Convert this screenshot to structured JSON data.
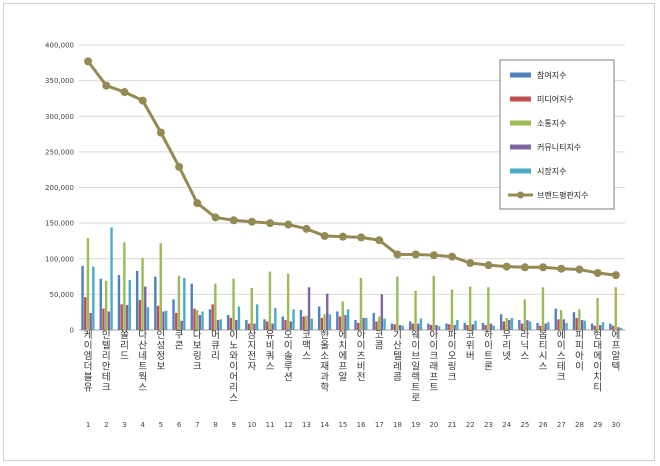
{
  "chart_data": {
    "type": "bar",
    "title": "",
    "xlabel": "",
    "ylabel": "",
    "ylim": [
      0,
      400000
    ],
    "yticks": [
      "0",
      "50,000",
      "100,000",
      "150,000",
      "200,000",
      "250,000",
      "300,000",
      "350,000",
      "400,000"
    ],
    "grid": true,
    "legend_position": "right",
    "categories": [
      "케이엠더블유",
      "인텔리안테크",
      "쏠리드",
      "다산네트웍스",
      "인성정보",
      "쿠콘",
      "다보링크",
      "머큐리",
      "이노와이어리스",
      "삼지전자",
      "유비쿼스",
      "오이솔루션",
      "코맥스",
      "한울소재과학",
      "에치에프알",
      "아이즈비전",
      "코콤",
      "기산텔레콤",
      "웨이브일렉트로",
      "아이크래프트",
      "파이오링크",
      "코위버",
      "하이트론",
      "우리넷",
      "라닉스",
      "옵티시스",
      "에이스테크",
      "피피아이",
      "현대에이치티",
      "에프알텍"
    ],
    "ranks": [
      "1",
      "2",
      "3",
      "4",
      "5",
      "6",
      "7",
      "8",
      "9",
      "10",
      "11",
      "12",
      "13",
      "14",
      "15",
      "16",
      "17",
      "18",
      "19",
      "20",
      "21",
      "22",
      "23",
      "24",
      "25",
      "26",
      "27",
      "28",
      "29",
      "30"
    ],
    "series": [
      {
        "name": "참여지수",
        "color": "#4f81bd",
        "values": [
          90000,
          72000,
          77000,
          83000,
          75000,
          43000,
          65000,
          29000,
          21000,
          14000,
          15000,
          19000,
          28000,
          33000,
          26000,
          14000,
          24000,
          9000,
          12000,
          9000,
          9000,
          10000,
          10000,
          22000,
          14000,
          10000,
          30000,
          25000,
          9000,
          9000
        ]
      },
      {
        "name": "미디어지수",
        "color": "#c0504d",
        "values": [
          46000,
          30000,
          36000,
          42000,
          34000,
          24000,
          30000,
          36000,
          17000,
          9000,
          12000,
          14000,
          19000,
          17000,
          19000,
          10000,
          12000,
          8000,
          9000,
          7000,
          8000,
          7000,
          7000,
          12000,
          9000,
          6000,
          15000,
          17000,
          6000,
          6000
        ]
      },
      {
        "name": "소통지수",
        "color": "#9bbb59",
        "values": [
          129000,
          69000,
          123000,
          101000,
          122000,
          76000,
          28000,
          65000,
          72000,
          59000,
          82000,
          79000,
          20000,
          22000,
          40000,
          73000,
          19000,
          75000,
          55000,
          76000,
          57000,
          61000,
          60000,
          17000,
          43000,
          60000,
          28000,
          29000,
          45000,
          60000
        ]
      },
      {
        "name": "커뮤니티지수",
        "color": "#8064a2",
        "values": [
          24000,
          26000,
          35000,
          61000,
          26000,
          13000,
          21000,
          14000,
          14000,
          9000,
          9000,
          12000,
          60000,
          51000,
          21000,
          17000,
          50000,
          7000,
          9000,
          7000,
          7000,
          8000,
          9000,
          14000,
          14000,
          9000,
          15000,
          14000,
          7000,
          4000
        ]
      },
      {
        "name": "시장지수",
        "color": "#4bacc6",
        "values": [
          89000,
          144000,
          70000,
          32000,
          27000,
          73000,
          26000,
          15000,
          33000,
          36000,
          31000,
          29000,
          16000,
          22000,
          29000,
          17000,
          16000,
          6000,
          16000,
          5000,
          14000,
          13000,
          6000,
          17000,
          12000,
          11000,
          10000,
          13000,
          11000,
          3000
        ]
      }
    ],
    "line": {
      "name": "브랜드평판지수",
      "color": "#948a54",
      "values": [
        377000,
        343000,
        334000,
        322000,
        277000,
        229000,
        178000,
        158000,
        154000,
        152000,
        150000,
        148000,
        142000,
        132000,
        131000,
        130000,
        126000,
        106000,
        106000,
        105000,
        103000,
        94000,
        91000,
        89000,
        88000,
        88000,
        86000,
        85000,
        80000,
        77000
      ]
    }
  }
}
